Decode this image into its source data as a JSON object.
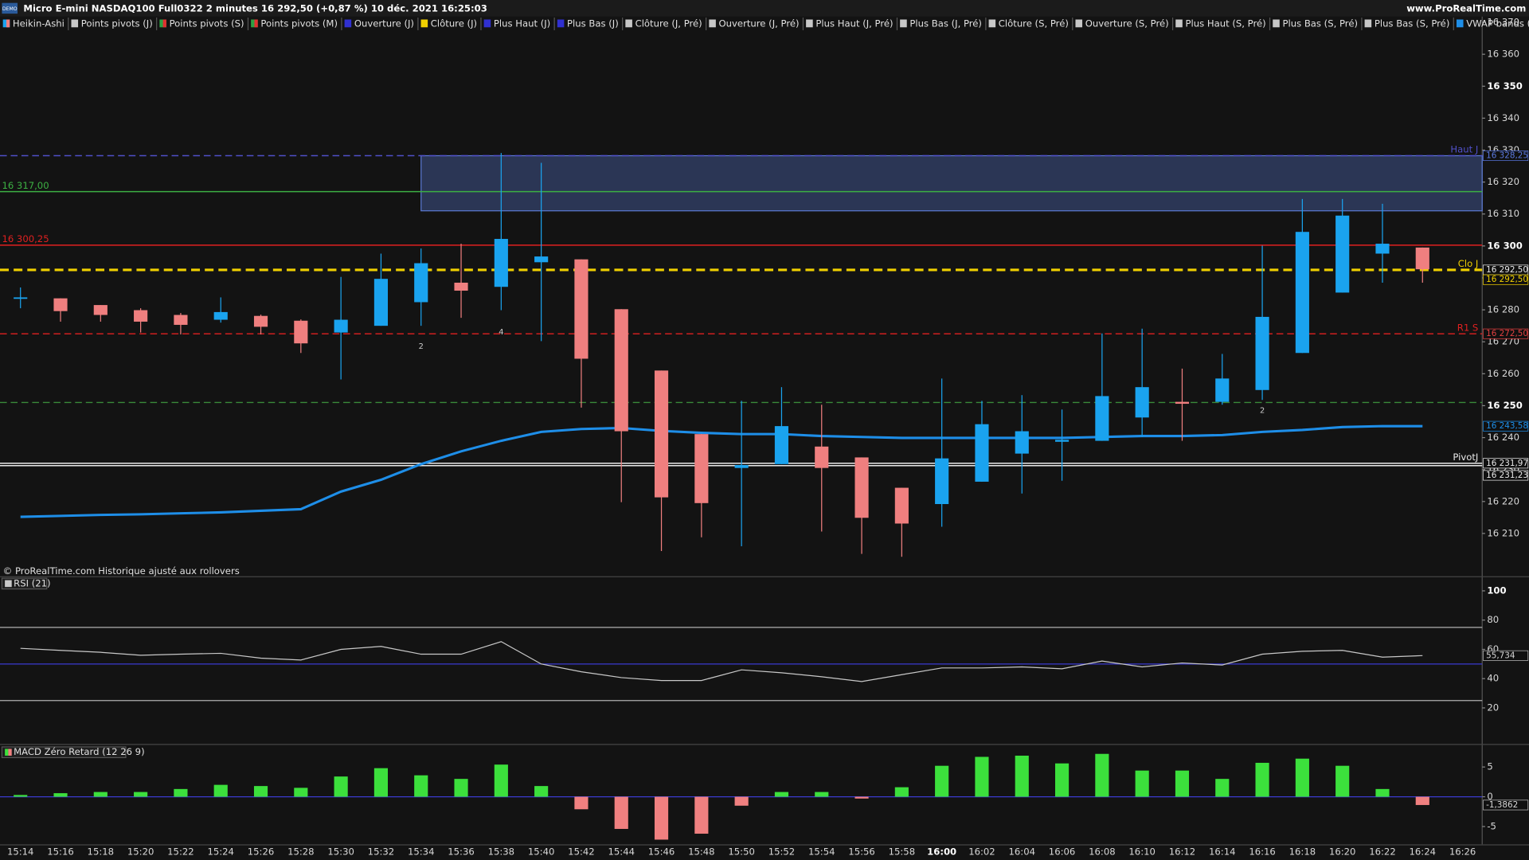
{
  "header": {
    "badge": "DEMO",
    "title": "Micro E-mini NASDAQ100 Full0322 2 minutes 16 292,50 (+0,87 %) 10 déc. 2021 16:25:03",
    "site": "www.ProRealTime.com"
  },
  "chart_data": [
    {
      "type": "candlestick",
      "title": "Heikin-Ashi",
      "legend": [
        {
          "name": "Heikin-Ashi",
          "color": "#1aa3ef",
          "color2": "#ef7f7f"
        },
        {
          "name": "Points pivots (J)",
          "color": "#c8c8c8"
        },
        {
          "name": "Points pivots (S)",
          "color": "#2ea043",
          "color2": "#e03030"
        },
        {
          "name": "Points pivots (M)",
          "color": "#2ea043",
          "color2": "#e03030"
        },
        {
          "name": "Ouverture (J)",
          "color": "#3030d0"
        },
        {
          "name": "Clôture (J)",
          "color": "#f0d000"
        },
        {
          "name": "Plus Haut (J)",
          "color": "#3030d0"
        },
        {
          "name": "Plus Bas (J)",
          "color": "#3030d0"
        },
        {
          "name": "Clôture (J, Pré)",
          "color": "#c8c8c8"
        },
        {
          "name": "Ouverture (J, Pré)",
          "color": "#c8c8c8"
        },
        {
          "name": "Plus Haut (J, Pré)",
          "color": "#c8c8c8"
        },
        {
          "name": "Plus Bas (J, Pré)",
          "color": "#c8c8c8"
        },
        {
          "name": "Clôture (S, Pré)",
          "color": "#c8c8c8"
        },
        {
          "name": "Ouverture (S, Pré)",
          "color": "#c8c8c8"
        },
        {
          "name": "Plus Haut (S, Pré)",
          "color": "#c8c8c8"
        },
        {
          "name": "Plus Bas (S, Pré)",
          "color": "#c8c8c8"
        },
        {
          "name": "Plus Bas (S, Pré)",
          "color": "#c8c8c8"
        },
        {
          "name": "VWAP bands (Journalier)",
          "color": "#1e8ee8"
        }
      ],
      "categories": [
        "15:14",
        "15:16",
        "15:18",
        "15:20",
        "15:22",
        "15:24",
        "15:26",
        "15:28",
        "15:30",
        "15:32",
        "15:34",
        "15:36",
        "15:38",
        "15:40",
        "15:42",
        "15:44",
        "15:46",
        "15:48",
        "15:50",
        "15:52",
        "15:54",
        "15:56",
        "15:58",
        "16:00",
        "16:02",
        "16:04",
        "16:06",
        "16:08",
        "16:10",
        "16:12",
        "16:14",
        "16:16",
        "16:18",
        "16:20",
        "16:22",
        "16:24",
        "16:26"
      ],
      "open": [
        16283.9,
        16283.6,
        16281.5,
        16279.9,
        16278.4,
        16276.9,
        16278.1,
        16276.6,
        16272.9,
        16275,
        16282.4,
        16288.5,
        16287.2,
        16294.9,
        16295.8,
        16280.2,
        16261,
        16241.1,
        16230.5,
        16231.7,
        16237.2,
        16233.8,
        16224.3,
        16219.2,
        16226.2,
        16235,
        16238.7,
        16239,
        16246.3,
        16251.2,
        16251.2,
        16254.9,
        16266.5,
        16285.4,
        16297.6,
        16299.5,
        null
      ],
      "high": [
        16287,
        16283.6,
        16281.5,
        16280.5,
        16279,
        16283.9,
        16278.5,
        16277,
        16290.3,
        16297.6,
        16299.2,
        16300.7,
        16329.1,
        16326,
        16295.8,
        16280.2,
        16261,
        16241.1,
        16251.5,
        16255.8,
        16250.3,
        16233.8,
        16224.3,
        16258.5,
        16251.5,
        16253.3,
        16248.8,
        16272.6,
        16274.1,
        16261.6,
        16266.2,
        16300.1,
        16314.7,
        16314.7,
        16313.2,
        16299.5,
        null
      ],
      "low": [
        16280.5,
        16276.3,
        16276.3,
        16272.9,
        16272.3,
        16276,
        16272.3,
        16266.5,
        16258.2,
        16275,
        16275,
        16277.5,
        16279.9,
        16270.2,
        16249.4,
        16219.8,
        16204.5,
        16208.8,
        16206,
        16231.7,
        16210.6,
        16203.6,
        16202.7,
        16212.1,
        16226.2,
        16222.5,
        16226.5,
        16239,
        16240.2,
        16239,
        16250.3,
        16251.8,
        16266.5,
        16285.4,
        16288.5,
        16288.5,
        null
      ],
      "close": [
        16283.9,
        16279.6,
        16278.4,
        16276.3,
        16275.3,
        16279.3,
        16274.7,
        16269.5,
        16276.9,
        16289.7,
        16294.6,
        16286,
        16302.2,
        16296.7,
        16264.7,
        16242,
        16221.3,
        16219.5,
        16231.4,
        16243.6,
        16230.5,
        16214.9,
        16213.1,
        16233.5,
        16244.2,
        16242,
        16239.3,
        16253,
        16255.8,
        16250.6,
        16258.5,
        16277.8,
        16304.4,
        16309.5,
        16300.7,
        16292.7,
        null
      ],
      "up_color": "#1aa3ef",
      "down_color": "#ef7f7f",
      "vwap": {
        "color": "#1e8ee8",
        "values": [
          16215.2,
          16215.5,
          16215.8,
          16216,
          16216.3,
          16216.6,
          16217.1,
          16217.6,
          16223.1,
          16226.8,
          16231.7,
          16235.7,
          16239,
          16241.8,
          16242.7,
          16243,
          16242.1,
          16241.5,
          16241.1,
          16241.1,
          16240.5,
          16240.2,
          16239.9,
          16239.9,
          16239.9,
          16239.9,
          16239.9,
          16240.2,
          16240.5,
          16240.5,
          16240.8,
          16241.8,
          16242.4,
          16243.3,
          16243.6,
          16243.58,
          null
        ]
      },
      "ylim": [
        16196.6,
        16371.8
      ],
      "yticks": [
        {
          "value": 16210,
          "label": "16 210"
        },
        {
          "value": 16220,
          "label": "16 220"
        },
        {
          "value": 16230,
          "label": "16 230"
        },
        {
          "value": 16240,
          "label": "16 240"
        },
        {
          "value": 16250,
          "label": "16 250"
        },
        {
          "value": 16260,
          "label": "16 260"
        },
        {
          "value": 16270,
          "label": "16 270"
        },
        {
          "value": 16280,
          "label": "16 280"
        },
        {
          "value": 16290,
          "label": "16 290"
        },
        {
          "value": 16300,
          "label": "16 300"
        },
        {
          "value": 16310,
          "label": "16 310"
        },
        {
          "value": 16320,
          "label": "16 320"
        },
        {
          "value": 16330,
          "label": "16 330"
        },
        {
          "value": 16340,
          "label": "16 340"
        },
        {
          "value": 16350,
          "label": "16 350"
        },
        {
          "value": 16360,
          "label": "16 360"
        },
        {
          "value": 16370,
          "label": "16 370"
        }
      ],
      "zone": {
        "from": 16311,
        "to": 16328.25,
        "start": "15:34",
        "color": "#5a78d0"
      },
      "levels": [
        {
          "value": 16328.25,
          "name": "Haut J",
          "color": "#5050c8",
          "dash": true
        },
        {
          "value": 16317,
          "label": "16 317,00",
          "color": "#3cb043",
          "dash": false
        },
        {
          "value": 16300.25,
          "label": "16 300,25",
          "color": "#e02020",
          "dash": false
        },
        {
          "value": 16292.5,
          "name": "Clo J",
          "color": "#f0d000",
          "dash": true
        },
        {
          "value": 16272.5,
          "name": "R1 S",
          "color": "#e02020",
          "dash": true
        },
        {
          "value": 16251,
          "color": "#3a8a3a",
          "dash": true
        },
        {
          "value": 16231.97,
          "name": "PivotJ",
          "color": "#e8e8e8",
          "dash": false
        },
        {
          "value": 16231.23,
          "color": "#e8e8e8",
          "dash": false
        }
      ],
      "price_tags": [
        {
          "value": 16328.25,
          "label": "16 328,25",
          "color": "#5a78e0"
        },
        {
          "value": 16292.5,
          "label": "16 292,50",
          "color": "#e8e8e8"
        },
        {
          "value": 16292.5,
          "label": "16 292,50",
          "color": "#f0d000"
        },
        {
          "value": 16272.5,
          "label": "16 272,50",
          "color": "#e04040"
        },
        {
          "value": 16243.58,
          "label": "16 243,58",
          "color": "#1e8ee8"
        },
        {
          "value": 16231.97,
          "label": "16 231,97",
          "color": "#e8e8e8"
        },
        {
          "value": 16231.23,
          "label": "16 231,23",
          "color": "#e8e8e8"
        }
      ],
      "annotations": [
        {
          "text": "2",
          "x": "15:34",
          "y": 16268.5
        },
        {
          "text": "4",
          "x": "15:38",
          "y": 16273
        },
        {
          "text": "2",
          "x": "16:16",
          "y": 16248.5
        }
      ],
      "footnote": "© ProRealTime.com Historique ajusté aux rollovers"
    },
    {
      "type": "line",
      "title": "RSI (21)",
      "color": "#c8c8c8",
      "values": [
        60.7,
        59.3,
        58,
        56,
        56.7,
        57.3,
        54,
        52.7,
        60,
        62,
        56.7,
        56.7,
        65.3,
        50,
        44.7,
        40.7,
        38.7,
        38.7,
        46,
        44,
        41.3,
        38,
        42.7,
        47.3,
        47.3,
        48,
        46.7,
        52,
        48,
        50.7,
        49.3,
        56.7,
        58.7,
        59.3,
        54.7,
        55.734,
        null
      ],
      "last_label": "55,734",
      "ylim": [
        -4,
        109.3
      ],
      "yticks": [
        20,
        40,
        60,
        80,
        100
      ],
      "ref_lines": [
        {
          "value": 75,
          "color": "#b0b0b0"
        },
        {
          "value": 50,
          "color": "#3a3ad0"
        },
        {
          "value": 25,
          "color": "#b0b0b0"
        }
      ]
    },
    {
      "type": "bar",
      "title": "MACD Zéro Retard (12 26 9)",
      "up_color": "#3ce03c",
      "down_color": "#f08080",
      "values": [
        0.3,
        0.6,
        0.8,
        0.8,
        1.3,
        2,
        1.8,
        1.5,
        3.4,
        4.8,
        3.6,
        3,
        5.4,
        1.8,
        -2.1,
        -5.4,
        -7.2,
        -6.2,
        -1.5,
        0.8,
        0.8,
        -0.3,
        1.6,
        5.2,
        6.7,
        6.9,
        5.6,
        7.2,
        4.4,
        4.4,
        3,
        5.7,
        6.4,
        5.2,
        1.3,
        -1.3862,
        null
      ],
      "last_label": "-1,3862",
      "ylim": [
        -8,
        8.7
      ],
      "yticks": [
        -5,
        0,
        5
      ],
      "ref_lines": [
        {
          "value": 0,
          "color": "#3a3ad0"
        }
      ]
    }
  ]
}
